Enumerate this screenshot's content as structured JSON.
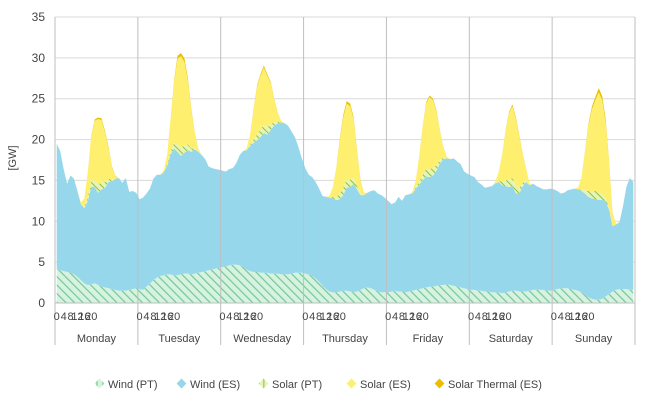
{
  "chart_data": {
    "type": "area",
    "stacked": true,
    "ylabel": "[GW]",
    "ylim": [
      0,
      35
    ],
    "yticks": [
      0,
      5,
      10,
      15,
      20,
      25,
      30,
      35
    ],
    "x_step_hours": 2,
    "hour_ticks": [
      "0",
      "4",
      "8",
      "12",
      "16",
      "20"
    ],
    "days": [
      "Monday",
      "Tuesday",
      "Wednesday",
      "Thursday",
      "Friday",
      "Saturday",
      "Sunday"
    ],
    "grid": "horizontal",
    "legend_position": "bottom",
    "series": [
      {
        "name": "Wind (PT)",
        "color": "#92d9a8",
        "pattern": "hatch",
        "values": [
          4.1,
          4.0,
          3.9,
          3.8,
          3.7,
          3.5,
          3.2,
          2.8,
          2.4,
          2.2,
          2.3,
          2.4,
          2.2,
          2.0,
          1.9,
          1.8,
          1.7,
          1.6,
          1.5,
          1.5,
          1.5,
          1.6,
          1.7,
          1.8,
          1.7,
          1.6,
          2.0,
          2.4,
          2.8,
          3.1,
          3.3,
          3.4,
          3.5,
          3.5,
          3.4,
          3.4,
          3.5,
          3.6,
          3.6,
          3.5,
          3.6,
          3.7,
          3.8,
          3.9,
          4.0,
          4.1,
          4.2,
          4.3,
          4.4,
          4.5,
          4.6,
          4.7,
          4.7,
          4.6,
          4.4,
          4.1,
          3.9,
          3.8,
          3.8,
          3.7,
          3.7,
          3.7,
          3.6,
          3.6,
          3.6,
          3.5,
          3.5,
          3.5,
          3.6,
          3.7,
          3.7,
          3.7,
          3.6,
          3.5,
          3.3,
          3.0,
          2.6,
          2.1,
          1.7,
          1.4,
          1.3,
          1.3,
          1.4,
          1.5,
          1.5,
          1.4,
          1.3,
          1.4,
          1.6,
          1.8,
          1.9,
          1.8,
          1.6,
          1.4,
          1.3,
          1.3,
          1.3,
          1.4,
          1.5,
          1.4,
          1.4,
          1.3,
          1.4,
          1.5,
          1.6,
          1.7,
          1.8,
          1.9,
          2.0,
          2.0,
          2.1,
          2.2,
          2.2,
          2.3,
          2.2,
          2.1,
          2.0,
          1.9,
          1.8,
          1.7,
          1.6,
          1.6,
          1.5,
          1.5,
          1.4,
          1.4,
          1.3,
          1.3,
          1.3,
          1.2,
          1.3,
          1.4,
          1.5,
          1.5,
          1.4,
          1.4,
          1.4,
          1.5,
          1.6,
          1.6,
          1.6,
          1.6,
          1.5,
          1.5,
          1.6,
          1.7,
          1.8,
          1.8,
          1.8,
          1.7,
          1.6,
          1.5,
          1.3,
          1.0,
          0.7,
          0.5,
          0.4,
          0.4,
          0.5,
          0.8,
          1.1,
          1.4,
          1.6,
          1.7,
          1.7,
          1.7,
          1.6,
          1.6
        ]
      },
      {
        "name": "Wind (ES)",
        "color": "#97d7ec",
        "values": [
          15.4,
          14.6,
          12.5,
          10.8,
          11.9,
          11.7,
          10.5,
          9.3,
          9.2,
          10.3,
          11.9,
          11.8,
          11.3,
          11.9,
          12.2,
          13.0,
          13.2,
          13.6,
          13.8,
          13.2,
          13.8,
          12.0,
          12.0,
          11.7,
          11.0,
          11.3,
          11.4,
          11.6,
          12.4,
          12.6,
          12.4,
          12.6,
          13.3,
          14.7,
          15.5,
          15.1,
          14.5,
          14.8,
          15.1,
          15.0,
          15.2,
          14.8,
          14.3,
          13.7,
          12.7,
          12.4,
          12.2,
          12.0,
          11.8,
          11.6,
          11.8,
          11.8,
          12.4,
          13.5,
          14.2,
          14.6,
          15.3,
          15.8,
          16.1,
          16.6,
          17.1,
          16.9,
          17.6,
          18.1,
          18.4,
          18.6,
          18.5,
          18.2,
          17.4,
          16.6,
          15.4,
          14.0,
          12.9,
          12.2,
          12.1,
          11.8,
          11.4,
          11.0,
          11.3,
          11.5,
          11.5,
          11.3,
          11.3,
          11.7,
          12.6,
          12.8,
          13.3,
          12.5,
          11.6,
          11.4,
          11.6,
          11.9,
          12.2,
          12.0,
          11.9,
          11.6,
          11.2,
          10.7,
          10.8,
          11.6,
          11.1,
          11.9,
          11.9,
          11.9,
          12.4,
          12.8,
          13.2,
          13.6,
          13.4,
          13.6,
          14.1,
          14.9,
          15.4,
          15.4,
          15.4,
          15.6,
          15.3,
          15.1,
          14.3,
          14.1,
          14.0,
          13.8,
          13.3,
          13.0,
          12.7,
          12.8,
          13.0,
          13.3,
          13.5,
          13.2,
          13.0,
          12.8,
          12.8,
          11.9,
          12.0,
          12.9,
          13.4,
          12.9,
          13.0,
          12.7,
          12.5,
          12.3,
          12.4,
          12.5,
          12.3,
          12.0,
          11.6,
          11.7,
          12.0,
          12.2,
          12.4,
          12.4,
          12.4,
          12.4,
          12.3,
          12.3,
          12.3,
          12.2,
          12.1,
          11.7,
          10.3,
          8.0,
          8.0,
          8.2,
          10.1,
          12.5,
          13.7,
          13.2
        ]
      },
      {
        "name": "Solar (PT)",
        "color": "#b5dc6b",
        "pattern": "hatch",
        "values": [
          0,
          0,
          0,
          0,
          0,
          0,
          0,
          0,
          0.2,
          0.4,
          0.7,
          0.9,
          1.0,
          0.9,
          0.7,
          0.4,
          0.2,
          0,
          0,
          0,
          0,
          0,
          0,
          0,
          0,
          0,
          0,
          0,
          0,
          0,
          0,
          0,
          0.2,
          0.4,
          0.7,
          0.9,
          1.0,
          0.9,
          0.7,
          0.4,
          0.2,
          0,
          0,
          0,
          0,
          0,
          0,
          0,
          0,
          0,
          0,
          0,
          0,
          0,
          0,
          0,
          0.2,
          0.4,
          0.7,
          0.9,
          1.0,
          0.9,
          0.7,
          0.4,
          0.2,
          0,
          0,
          0,
          0,
          0,
          0,
          0,
          0,
          0,
          0,
          0,
          0,
          0,
          0,
          0,
          0.2,
          0.4,
          0.7,
          0.9,
          1.0,
          0.9,
          0.7,
          0.4,
          0.2,
          0,
          0,
          0,
          0,
          0,
          0,
          0,
          0,
          0,
          0,
          0,
          0,
          0,
          0,
          0,
          0.2,
          0.4,
          0.7,
          0.9,
          1.0,
          0.9,
          0.7,
          0.4,
          0.2,
          0,
          0,
          0,
          0,
          0,
          0,
          0,
          0,
          0,
          0,
          0,
          0,
          0,
          0,
          0,
          0.2,
          0.4,
          0.7,
          0.9,
          1.0,
          0.9,
          0.7,
          0.4,
          0.2,
          0,
          0,
          0,
          0,
          0,
          0,
          0,
          0,
          0,
          0,
          0,
          0,
          0,
          0,
          0,
          0.2,
          0.4,
          0.7,
          0.9,
          1.0,
          0.9,
          0.7,
          0.4,
          0.2,
          0,
          0,
          0,
          0,
          0,
          0,
          0
        ]
      },
      {
        "name": "Solar (ES)",
        "color": "#ffef6e",
        "values": [
          0,
          0,
          0,
          0,
          0,
          0,
          0,
          0.2,
          1.0,
          3.0,
          5.5,
          7.2,
          8.0,
          7.6,
          6.0,
          3.8,
          1.5,
          0.3,
          0,
          0,
          0,
          0,
          0,
          0,
          0,
          0,
          0,
          0,
          0,
          0,
          0,
          0.2,
          1.2,
          3.8,
          7.5,
          10.5,
          11.2,
          10.2,
          7.8,
          4.6,
          1.7,
          0.3,
          0,
          0,
          0,
          0,
          0,
          0,
          0,
          0,
          0,
          0,
          0,
          0,
          0,
          0.2,
          1.2,
          3.6,
          5.8,
          6.6,
          7.0,
          6.3,
          5.0,
          2.8,
          1.1,
          0.2,
          0,
          0,
          0,
          0,
          0,
          0,
          0,
          0,
          0,
          0,
          0,
          0,
          0,
          0.2,
          1.2,
          3.5,
          6.5,
          8.6,
          9.3,
          9.0,
          7.2,
          4.2,
          1.5,
          0.3,
          0,
          0,
          0,
          0,
          0,
          0,
          0,
          0,
          0,
          0,
          0,
          0,
          0,
          0.2,
          0.8,
          3.0,
          5.8,
          8.0,
          8.8,
          8.3,
          6.5,
          3.5,
          1.2,
          0.2,
          0,
          0,
          0,
          0,
          0,
          0,
          0,
          0,
          0,
          0,
          0,
          0,
          0,
          0.2,
          1.0,
          3.2,
          6.0,
          8.1,
          8.8,
          8.2,
          6.2,
          3.4,
          1.3,
          0.2,
          0,
          0,
          0,
          0,
          0,
          0,
          0,
          0,
          0,
          0,
          0,
          0,
          0,
          0.2,
          1.5,
          4.6,
          8.0,
          10.0,
          11.1,
          12.3,
          11.5,
          9.2,
          5.5,
          1.5,
          0.1,
          0,
          0,
          0,
          0,
          0
        ]
      },
      {
        "name": "Solar Thermal (ES)",
        "color": "#e8c000",
        "values": [
          0,
          0,
          0,
          0,
          0,
          0,
          0,
          0,
          0,
          0.05,
          0.1,
          0.15,
          0.2,
          0.2,
          0.2,
          0.15,
          0.1,
          0.05,
          0,
          0,
          0,
          0,
          0,
          0,
          0,
          0,
          0,
          0,
          0,
          0,
          0,
          0,
          0,
          0.1,
          0.2,
          0.35,
          0.4,
          0.4,
          0.3,
          0.2,
          0.1,
          0.05,
          0,
          0,
          0,
          0,
          0,
          0,
          0,
          0,
          0,
          0,
          0,
          0,
          0,
          0,
          0,
          0.1,
          0.15,
          0.2,
          0.25,
          0.2,
          0.15,
          0.1,
          0.05,
          0,
          0,
          0,
          0,
          0,
          0,
          0,
          0,
          0,
          0,
          0,
          0,
          0,
          0,
          0,
          0,
          0.1,
          0.2,
          0.3,
          0.3,
          0.3,
          0.25,
          0.15,
          0.1,
          0,
          0,
          0,
          0,
          0,
          0,
          0,
          0,
          0,
          0,
          0,
          0,
          0,
          0,
          0,
          0,
          0.05,
          0.1,
          0.15,
          0.2,
          0.2,
          0.15,
          0.1,
          0.05,
          0,
          0,
          0,
          0,
          0,
          0,
          0,
          0,
          0,
          0,
          0,
          0,
          0,
          0,
          0,
          0,
          0.05,
          0.1,
          0.15,
          0.2,
          0.2,
          0.15,
          0.1,
          0.05,
          0,
          0,
          0,
          0,
          0,
          0,
          0,
          0,
          0,
          0,
          0,
          0,
          0,
          0,
          0,
          0,
          0.1,
          0.2,
          0.3,
          0.4,
          0.5,
          0.5,
          0.4,
          0.2,
          0.1,
          0,
          0,
          0,
          0,
          0,
          0
        ]
      }
    ]
  }
}
